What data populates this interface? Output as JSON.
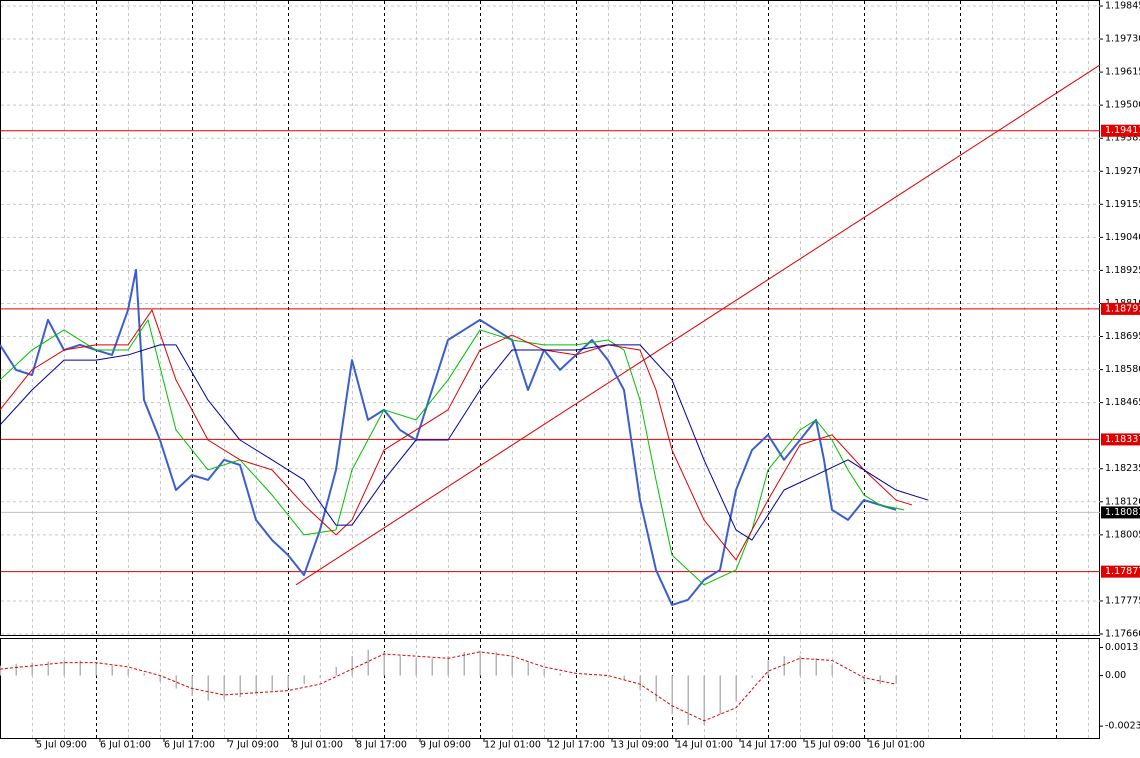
{
  "chart_data": [
    {
      "type": "line",
      "xlim": [
        0,
        275
      ],
      "ylim": [
        1.1766,
        1.19845
      ],
      "yticks": [
        1.19845,
        {
          "value": 1.1973,
          "label": "1.19730"
        },
        1.19615,
        {
          "value": 1.195,
          "label": "1.19500"
        },
        1.19385,
        {
          "value": 1.1927,
          "label": "1.19270"
        },
        1.19155,
        {
          "value": 1.1904,
          "label": "1.19040"
        },
        1.18925,
        {
          "value": 1.1881,
          "label": "1.18810"
        },
        1.18695,
        {
          "value": 1.1858,
          "label": "1.18580"
        },
        1.18465,
        1.18235,
        {
          "value": 1.1812,
          "label": "1.18120"
        },
        1.18005,
        1.17775,
        {
          "value": 1.1766,
          "label": "1.17660"
        }
      ],
      "grid": true,
      "series": [
        {
          "color": "#3a5fcd",
          "width": 2,
          "x": [
            0,
            4,
            8,
            12,
            16,
            20,
            24,
            28,
            32,
            34,
            36,
            40,
            44,
            48,
            52,
            56,
            60,
            64,
            68,
            72,
            76,
            80,
            84,
            88,
            92,
            96,
            100,
            104,
            108,
            112,
            116,
            120,
            124,
            128,
            132,
            136,
            140,
            144,
            148,
            152,
            156,
            160,
            164,
            168,
            172,
            176,
            180,
            184,
            188,
            192,
            196,
            200,
            204,
            206,
            208,
            212,
            216,
            220,
            224
          ],
          "values": [
            1.18666,
            1.18579,
            1.18561,
            1.18753,
            1.18648,
            1.18666,
            1.18648,
            1.18631,
            1.18787,
            1.18927,
            1.18474,
            1.18335,
            1.18161,
            1.18213,
            1.18196,
            1.18266,
            1.18248,
            1.18057,
            1.17987,
            1.17935,
            1.17865,
            1.18022,
            1.18231,
            1.18613,
            1.18405,
            1.1844,
            1.1837,
            1.18335,
            1.18509,
            1.18683,
            1.18718,
            1.18753,
            1.18718,
            1.18683,
            1.18509,
            1.18648,
            1.18579,
            1.18631,
            1.18683,
            1.18613,
            1.18509,
            1.18126,
            1.17883,
            1.17761,
            1.17779,
            1.17848,
            1.17883,
            1.18161,
            1.183,
            1.18353,
            1.18266,
            1.18335,
            1.18405,
            1.18266,
            1.18092,
            1.18057,
            1.18126,
            1.18109,
            1.18092
          ]
        },
        {
          "color": "#00c000",
          "width": 1,
          "x": [
            0,
            8,
            16,
            24,
            32,
            37,
            44,
            52,
            60,
            68,
            76,
            84,
            88,
            96,
            104,
            112,
            120,
            128,
            136,
            144,
            152,
            156,
            160,
            164,
            168,
            176,
            184,
            188,
            192,
            196,
            200,
            204,
            208,
            212,
            216,
            220,
            226
          ],
          "values": [
            1.18544,
            1.18648,
            1.18718,
            1.18648,
            1.18648,
            1.18753,
            1.1837,
            1.18231,
            1.18266,
            1.18144,
            1.18005,
            1.18022,
            1.18231,
            1.1844,
            1.18405,
            1.18544,
            1.18718,
            1.18683,
            1.18666,
            1.18666,
            1.18683,
            1.18648,
            1.18474,
            1.18196,
            1.17935,
            1.17831,
            1.17883,
            1.18022,
            1.18231,
            1.183,
            1.1837,
            1.18405,
            1.18335,
            1.18231,
            1.18144,
            1.18109,
            1.18092
          ]
        },
        {
          "color": "#e00000",
          "width": 1,
          "x": [
            0,
            8,
            16,
            24,
            32,
            38,
            44,
            52,
            60,
            68,
            76,
            84,
            88,
            96,
            104,
            112,
            120,
            128,
            136,
            144,
            152,
            160,
            164,
            168,
            176,
            184,
            192,
            200,
            208,
            216,
            224,
            228
          ],
          "values": [
            1.1844,
            1.18579,
            1.18648,
            1.18666,
            1.18666,
            1.18787,
            1.18544,
            1.18335,
            1.18266,
            1.18231,
            1.18109,
            1.18005,
            1.18057,
            1.183,
            1.1837,
            1.1844,
            1.18648,
            1.187,
            1.18648,
            1.18631,
            1.18666,
            1.18648,
            1.18509,
            1.183,
            1.18057,
            1.17918,
            1.18126,
            1.18318,
            1.18353,
            1.18231,
            1.18126,
            1.18109
          ]
        },
        {
          "color": "#0000a0",
          "width": 1,
          "x": [
            0,
            8,
            16,
            24,
            32,
            40,
            44,
            52,
            60,
            68,
            76,
            84,
            88,
            96,
            104,
            112,
            120,
            128,
            136,
            144,
            152,
            160,
            168,
            176,
            184,
            188,
            196,
            204,
            212,
            216,
            224,
            232
          ],
          "values": [
            1.18387,
            1.18509,
            1.18613,
            1.18613,
            1.18631,
            1.18666,
            1.18666,
            1.18474,
            1.18335,
            1.18266,
            1.18196,
            1.18039,
            1.18039,
            1.18196,
            1.18335,
            1.18335,
            1.18509,
            1.18648,
            1.18648,
            1.18648,
            1.18666,
            1.18666,
            1.18544,
            1.18266,
            1.18022,
            1.17987,
            1.18161,
            1.18213,
            1.18266,
            1.18231,
            1.18161,
            1.18126
          ]
        }
      ],
      "trendline": {
        "color": "#e00000",
        "x": [
          74,
          275
        ],
        "values": [
          1.17831,
          1.1964
        ]
      },
      "levels": {
        "color": "#e00000",
        "values": [
          1.19411,
          1.18791,
          1.18337,
          1.17877
        ]
      },
      "current": {
        "color": "#000000",
        "value": 1.18083
      }
    },
    {
      "type": "bar",
      "xlim": [
        0,
        275
      ],
      "ylim": [
        -0.0029,
        0.00165
      ],
      "yticks": [
        0.0013,
        {
          "value": 0,
          "label": "0.00"
        },
        -0.00235
      ],
      "color": "#b4b4b4",
      "x": [
        0,
        4,
        8,
        12,
        16,
        20,
        24,
        28,
        32,
        36,
        40,
        44,
        48,
        52,
        56,
        60,
        64,
        68,
        72,
        76,
        80,
        84,
        88,
        92,
        96,
        100,
        104,
        108,
        112,
        116,
        120,
        124,
        128,
        132,
        136,
        140,
        144,
        148,
        152,
        156,
        160,
        164,
        168,
        172,
        176,
        180,
        184,
        188,
        192,
        196,
        200,
        204,
        208,
        212,
        216,
        220,
        224
      ],
      "values": [
        0.00046,
        0.00055,
        0.0006,
        0.00065,
        0.0007,
        0.0007,
        0.00055,
        0.00045,
        0.00032,
        0.0001,
        -0.0003,
        -0.0006,
        -0.00095,
        -0.00116,
        -0.0011,
        -0.001,
        -0.0008,
        -0.0007,
        -0.0006,
        -0.0004,
        -0.0001,
        0.0004,
        0.0009,
        0.0012,
        0.0011,
        0.0009,
        0.0008,
        0.0008,
        0.0009,
        0.0011,
        0.00116,
        0.0011,
        0.0009,
        0.0006,
        0.0003,
        0.0001,
        0,
        0,
        0,
        -0.0002,
        -0.0007,
        -0.0012,
        -0.0018,
        -0.0023,
        -0.0023,
        -0.0018,
        -0.0012,
        -0.0001,
        0.0007,
        0.0009,
        0.00093,
        0.0008,
        0.0005,
        0,
        -0.0003,
        -0.0004,
        -0.00037
      ],
      "series": [
        {
          "color": "#e00000",
          "dashed": true,
          "x": [
            0,
            8,
            16,
            24,
            32,
            40,
            48,
            56,
            64,
            72,
            80,
            88,
            96,
            104,
            112,
            120,
            128,
            136,
            144,
            152,
            160,
            168,
            176,
            184,
            192,
            200,
            208,
            216,
            224
          ],
          "values": [
            0.0003,
            0.00045,
            0.0006,
            0.0006,
            0.0004,
            0,
            -0.0006,
            -0.0009,
            -0.0008,
            -0.0007,
            -0.0004,
            0.0003,
            0.001,
            0.0009,
            0.0008,
            0.0011,
            0.0009,
            0.0004,
            0.0001,
            0,
            -0.0004,
            -0.0014,
            -0.0021,
            -0.0015,
            0.0002,
            0.0008,
            0.0007,
            -0.0001,
            -0.0004
          ]
        }
      ],
      "xticks": [
        {
          "value": 9,
          "label": "5 Jul 09:00"
        },
        {
          "value": 25,
          "label": "6 Jul 01:00"
        },
        {
          "value": 41,
          "label": "6 Jul 17:00"
        },
        {
          "value": 57,
          "label": "7 Jul 09:00"
        },
        {
          "value": 73,
          "label": "8 Jul 01:00"
        },
        {
          "value": 89,
          "label": "8 Jul 17:00"
        },
        {
          "value": 105,
          "label": "9 Jul 09:00"
        },
        {
          "value": 121,
          "label": "12 Jul 01:00"
        },
        {
          "value": 137,
          "label": "12 Jul 17:00"
        },
        {
          "value": 153,
          "label": "13 Jul 09:00"
        },
        {
          "value": 169,
          "label": "14 Jul 01:00"
        },
        {
          "value": 185,
          "label": "14 Jul 17:00"
        },
        {
          "value": 201,
          "label": "15 Jul 09:00"
        },
        {
          "value": 217,
          "label": "16 Jul 01:00"
        }
      ]
    }
  ]
}
